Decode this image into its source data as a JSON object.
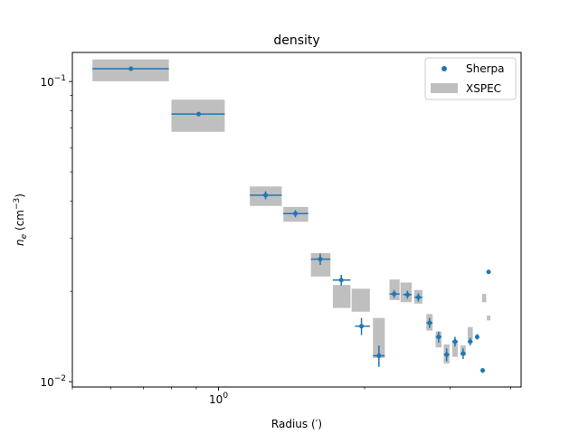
{
  "chart_data": {
    "type": "scatter",
    "title": "density",
    "xlabel": "Radius (′)",
    "ylabel_parts": {
      "symbol": "n",
      "sub": "e",
      "unit_open": " (cm",
      "unit_sup": "−3",
      "unit_close": ")"
    },
    "xscale": "log",
    "yscale": "log",
    "xlim": [
      0.5,
      4.2
    ],
    "ylim": [
      0.0096,
      0.125
    ],
    "x_tick_labels": [
      {
        "value": 1,
        "base": "10",
        "exp": "0"
      }
    ],
    "y_tick_labels": [
      {
        "value": 0.1,
        "base": "10",
        "exp": "−1"
      },
      {
        "value": 0.01,
        "base": "10",
        "exp": "−2"
      }
    ],
    "legend": {
      "position": "top-right",
      "entries": [
        "Sherpa",
        "XSPEC"
      ]
    },
    "colors": {
      "sherpa": "#1f77b4",
      "xspec": "#bfbfbf"
    },
    "series": [
      {
        "name": "Sherpa",
        "kind": "points-with-errorbars",
        "points": [
          {
            "x": 0.66,
            "y": 0.1103,
            "xerr": [
              0.55,
              0.79
            ],
            "yerr": [
              0.109,
              0.1115
            ]
          },
          {
            "x": 0.91,
            "y": 0.0779,
            "xerr": [
              0.8,
              1.03
            ],
            "yerr": [
              0.077,
              0.0788
            ]
          },
          {
            "x": 1.25,
            "y": 0.0418,
            "xerr": [
              1.16,
              1.35
            ],
            "yerr": [
              0.0405,
              0.0431
            ]
          },
          {
            "x": 1.44,
            "y": 0.0363,
            "xerr": [
              1.36,
              1.53
            ],
            "yerr": [
              0.0353,
              0.0373
            ]
          },
          {
            "x": 1.62,
            "y": 0.0256,
            "xerr": [
              1.55,
              1.7
            ],
            "yerr": [
              0.0245,
              0.0267
            ]
          },
          {
            "x": 1.79,
            "y": 0.0218,
            "xerr": [
              1.72,
              1.87
            ],
            "yerr": [
              0.0209,
              0.0227
            ]
          },
          {
            "x": 1.97,
            "y": 0.0153,
            "xerr": [
              1.91,
              2.05
            ],
            "yerr": [
              0.0143,
              0.0163
            ]
          },
          {
            "x": 2.14,
            "y": 0.0122,
            "xerr": [
              2.08,
              2.2
            ],
            "yerr": [
              0.0112,
              0.0132
            ]
          },
          {
            "x": 2.3,
            "y": 0.0196,
            "xerr": [
              2.25,
              2.36
            ],
            "yerr": [
              0.019,
              0.0202
            ]
          },
          {
            "x": 2.45,
            "y": 0.0195,
            "xerr": [
              2.4,
              2.5
            ],
            "yerr": [
              0.0189,
              0.0201
            ]
          },
          {
            "x": 2.58,
            "y": 0.0191,
            "xerr": [
              2.53,
              2.63
            ],
            "yerr": [
              0.0185,
              0.0197
            ]
          },
          {
            "x": 2.72,
            "y": 0.0157,
            "xerr": [
              2.68,
              2.76
            ],
            "yerr": [
              0.0151,
              0.0163
            ]
          },
          {
            "x": 2.84,
            "y": 0.0141,
            "xerr": [
              2.8,
              2.88
            ],
            "yerr": [
              0.0135,
              0.0147
            ]
          },
          {
            "x": 2.95,
            "y": 0.0123,
            "xerr": [
              2.91,
              2.99
            ],
            "yerr": [
              0.0117,
              0.0129
            ]
          },
          {
            "x": 3.07,
            "y": 0.0136,
            "xerr": [
              3.03,
              3.11
            ],
            "yerr": [
              0.0131,
              0.0141
            ]
          },
          {
            "x": 3.19,
            "y": 0.0124,
            "xerr": [
              3.15,
              3.23
            ],
            "yerr": [
              0.0119,
              0.0129
            ]
          },
          {
            "x": 3.3,
            "y": 0.0136,
            "xerr": [
              3.26,
              3.34
            ],
            "yerr": [
              0.0132,
              0.014
            ]
          },
          {
            "x": 3.41,
            "y": 0.0141,
            "xerr": [
              3.38,
              3.44
            ],
            "yerr": [
              0.0138,
              0.0144
            ]
          },
          {
            "x": 3.5,
            "y": 0.0109,
            "xerr": [
              3.47,
              3.53
            ],
            "yerr": [
              0.0107,
              0.0111
            ]
          },
          {
            "x": 3.6,
            "y": 0.0232,
            "xerr": [
              3.57,
              3.63
            ],
            "yerr": [
              0.023,
              0.0234
            ]
          }
        ]
      },
      {
        "name": "XSPEC",
        "kind": "boxes",
        "boxes": [
          {
            "x": [
              0.55,
              0.79
            ],
            "y": [
              0.1002,
              0.1185
            ]
          },
          {
            "x": [
              0.8,
              1.03
            ],
            "y": [
              0.068,
              0.087
            ]
          },
          {
            "x": [
              1.16,
              1.35
            ],
            "y": [
              0.0385,
              0.0447
            ]
          },
          {
            "x": [
              1.36,
              1.53
            ],
            "y": [
              0.0341,
              0.0382
            ]
          },
          {
            "x": [
              1.55,
              1.7
            ],
            "y": [
              0.0224,
              0.0268
            ]
          },
          {
            "x": [
              1.72,
              1.87
            ],
            "y": [
              0.0176,
              0.021
            ]
          },
          {
            "x": [
              1.88,
              2.05
            ],
            "y": [
              0.0171,
              0.0204
            ]
          },
          {
            "x": [
              2.08,
              2.2
            ],
            "y": [
              0.012,
              0.0163
            ]
          },
          {
            "x": [
              2.25,
              2.36
            ],
            "y": [
              0.0187,
              0.0219
            ]
          },
          {
            "x": [
              2.37,
              2.5
            ],
            "y": [
              0.0184,
              0.0214
            ]
          },
          {
            "x": [
              2.53,
              2.63
            ],
            "y": [
              0.0182,
              0.0202
            ]
          },
          {
            "x": [
              2.68,
              2.76
            ],
            "y": [
              0.0148,
              0.0168
            ]
          },
          {
            "x": [
              2.8,
              2.88
            ],
            "y": [
              0.013,
              0.0147
            ]
          },
          {
            "x": [
              2.91,
              2.99
            ],
            "y": [
              0.0115,
              0.0133
            ]
          },
          {
            "x": [
              3.03,
              3.11
            ],
            "y": [
              0.0121,
              0.0137
            ]
          },
          {
            "x": [
              3.15,
              3.23
            ],
            "y": [
              0.0122,
              0.0132
            ]
          },
          {
            "x": [
              3.26,
              3.34
            ],
            "y": [
              0.0138,
              0.0152
            ]
          },
          {
            "x": [
              3.49,
              3.56
            ],
            "y": [
              0.0184,
              0.0196
            ]
          },
          {
            "x": [
              3.57,
              3.63
            ],
            "y": [
              0.016,
              0.0166
            ]
          }
        ]
      }
    ]
  }
}
